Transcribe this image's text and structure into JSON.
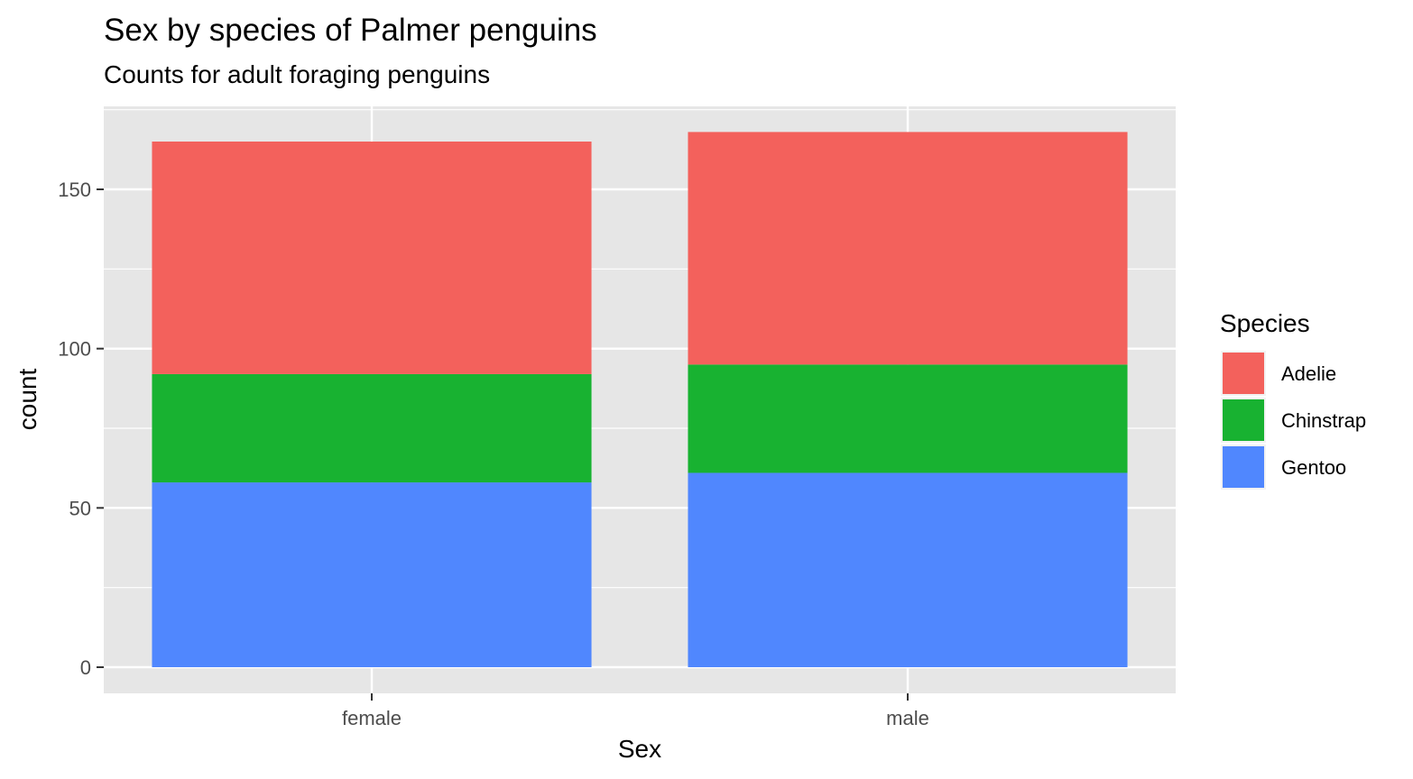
{
  "chart_data": {
    "type": "bar",
    "stacked": true,
    "title": "Sex by species of Palmer penguins",
    "subtitle": "Counts for adult foraging penguins",
    "xlabel": "Sex",
    "ylabel": "count",
    "categories": [
      "female",
      "male"
    ],
    "series": [
      {
        "name": "Adelie",
        "values": [
          73,
          73
        ]
      },
      {
        "name": "Chinstrap",
        "values": [
          34,
          34
        ]
      },
      {
        "name": "Gentoo",
        "values": [
          58,
          61
        ]
      }
    ],
    "stack_order_bottom_to_top": [
      "Gentoo",
      "Chinstrap",
      "Adelie"
    ],
    "ylim": [
      -7,
      176
    ],
    "yticks": [
      0,
      50,
      100,
      150
    ],
    "ytick_labels": [
      "0",
      "50",
      "100",
      "150"
    ],
    "grid": true,
    "legend": {
      "title": "Species",
      "position": "right"
    },
    "colors": {
      "Adelie": "#F3615C",
      "Chinstrap": "#18B231",
      "Gentoo": "#5087FE",
      "panel_background": "#E6E6E6",
      "grid": "#FFFFFF"
    }
  }
}
